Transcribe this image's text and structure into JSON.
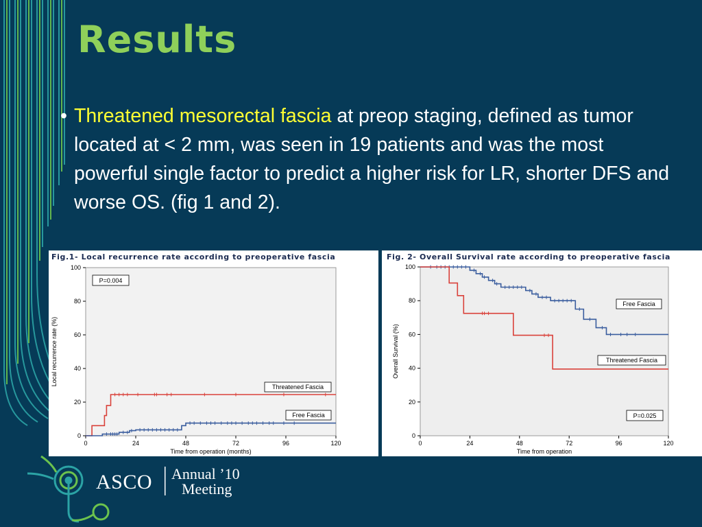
{
  "slide": {
    "title": "Results",
    "bullet_highlight": "Threatened mesorectal fascia",
    "bullet_text": " at preop staging, defined as tumor located at < 2 mm, was seen in 19 patients and was the most powerful single factor to predict a higher risk for LR, shorter DFS and worse OS.  (fig 1 and 2)."
  },
  "logo": {
    "org": "ASCO",
    "line1": "Annual ’10",
    "line2": "Meeting"
  },
  "colors": {
    "background": "#063a57",
    "title": "#8fd05a",
    "highlight": "#ffff33",
    "threatened": "#d9413a",
    "free": "#3a5d9e"
  },
  "chart_data": [
    {
      "type": "line",
      "title": "Fig.1- Local recurrence rate according to preoperative fascia",
      "xlabel": "Time from operation (months)",
      "ylabel": "Local recurrence rate (%)",
      "xlim": [
        0,
        120
      ],
      "ylim": [
        0,
        100
      ],
      "xticks": [
        0,
        24,
        48,
        72,
        96,
        120
      ],
      "yticks": [
        0,
        20,
        40,
        60,
        80,
        100
      ],
      "annotation": "P=0.004",
      "series": [
        {
          "name": "Threatened Fascia",
          "color": "#d9413a",
          "steps": [
            [
              0,
              0
            ],
            [
              3,
              0
            ],
            [
              3,
              6
            ],
            [
              9,
              6
            ],
            [
              9,
              12
            ],
            [
              10,
              12
            ],
            [
              10,
              18
            ],
            [
              12,
              18
            ],
            [
              12,
              24.5
            ],
            [
              120,
              24.5
            ]
          ],
          "censors": [
            14,
            16,
            18,
            20,
            25,
            33,
            34,
            39,
            41,
            57,
            72,
            95,
            115
          ]
        },
        {
          "name": "Free Fascia",
          "color": "#3a5d9e",
          "steps": [
            [
              0,
              0
            ],
            [
              8,
              0
            ],
            [
              8,
              1
            ],
            [
              16,
              1
            ],
            [
              16,
              2
            ],
            [
              21,
              2
            ],
            [
              21,
              3
            ],
            [
              24,
              3
            ],
            [
              24,
              3.5
            ],
            [
              46,
              3.5
            ],
            [
              46,
              6
            ],
            [
              48,
              6
            ],
            [
              48,
              7.5
            ],
            [
              120,
              7.5
            ]
          ],
          "censors": [
            10,
            12,
            13,
            14,
            15,
            18,
            20,
            22,
            26,
            28,
            30,
            32,
            34,
            36,
            38,
            40,
            42,
            44,
            50,
            52,
            55,
            58,
            60,
            62,
            65,
            68,
            70,
            72,
            75,
            78,
            80,
            82,
            85,
            88,
            90,
            95,
            100
          ]
        }
      ]
    },
    {
      "type": "line",
      "title": "Fig. 2- Overall Survival rate according to preoperative fascia",
      "xlabel": "Time from operation",
      "ylabel": "Overall Survival (%)",
      "xlim": [
        0,
        120
      ],
      "ylim": [
        0,
        100
      ],
      "xticks": [
        0,
        24,
        48,
        72,
        96,
        120
      ],
      "yticks": [
        0,
        20,
        40,
        60,
        80,
        100
      ],
      "annotation": "P=0.025",
      "series": [
        {
          "name": "Free Fascia",
          "color": "#3a5d9e",
          "steps": [
            [
              0,
              100
            ],
            [
              24,
              100
            ],
            [
              24,
              98
            ],
            [
              27,
              98
            ],
            [
              27,
              96
            ],
            [
              30,
              96
            ],
            [
              30,
              94
            ],
            [
              33,
              94
            ],
            [
              33,
              92
            ],
            [
              36,
              92
            ],
            [
              36,
              90
            ],
            [
              39,
              90
            ],
            [
              39,
              88
            ],
            [
              51,
              88
            ],
            [
              51,
              86
            ],
            [
              54,
              86
            ],
            [
              54,
              84
            ],
            [
              57,
              84
            ],
            [
              57,
              82
            ],
            [
              63,
              82
            ],
            [
              63,
              80
            ],
            [
              75,
              80
            ],
            [
              75,
              75
            ],
            [
              79,
              75
            ],
            [
              79,
              69
            ],
            [
              85,
              69
            ],
            [
              85,
              64
            ],
            [
              90,
              64
            ],
            [
              90,
              60
            ],
            [
              120,
              60
            ]
          ],
          "censors": [
            5,
            8,
            10,
            12,
            14,
            16,
            18,
            20,
            22,
            26,
            29,
            31,
            35,
            37,
            41,
            43,
            45,
            47,
            49,
            53,
            56,
            59,
            61,
            65,
            67,
            69,
            71,
            73,
            77,
            82,
            88,
            92,
            97,
            100,
            104
          ]
        },
        {
          "name": "Threatened Fascia",
          "color": "#d9413a",
          "steps": [
            [
              0,
              100
            ],
            [
              14,
              100
            ],
            [
              14,
              90.5
            ],
            [
              18,
              90.5
            ],
            [
              18,
              83
            ],
            [
              21,
              83
            ],
            [
              21,
              72.5
            ],
            [
              45,
              72.5
            ],
            [
              45,
              59.5
            ],
            [
              64,
              59.5
            ],
            [
              64,
              39.5
            ],
            [
              120,
              39.5
            ]
          ],
          "censors": [
            30,
            31,
            33,
            60,
            62
          ]
        }
      ]
    }
  ]
}
